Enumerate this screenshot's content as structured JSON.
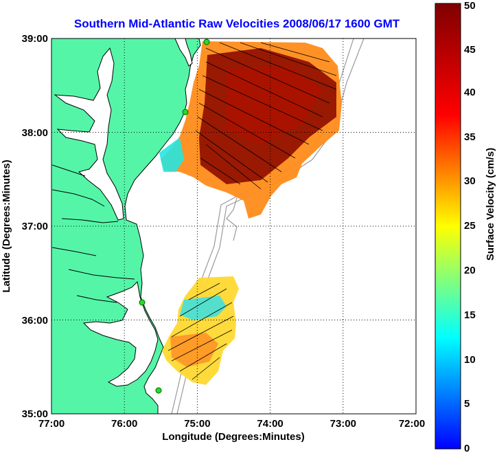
{
  "title": "Southern Mid-Atlantic Raw Velocities 2008/06/17 1600 GMT",
  "xlabel": "Longitude (Degrees:Minutes)",
  "ylabel": "Latitude (Degrees:Minutes)",
  "colorbar_label": "Surface Velocity (cm/s)",
  "x_ticks": [
    "77:00",
    "76:00",
    "75:00",
    "74:00",
    "73:00",
    "72:00"
  ],
  "y_ticks": [
    "39:00",
    "38:00",
    "37:00",
    "36:00",
    "35:00"
  ],
  "colorbar_ticks": [
    "0",
    "5",
    "10",
    "15",
    "20",
    "25",
    "30",
    "35",
    "40",
    "45",
    "50"
  ],
  "colors": {
    "land": "#55f5a8",
    "coast": "#000000",
    "isobath": "#999999",
    "title": "#0000ff",
    "station": "#22dd22"
  },
  "chart_data": {
    "type": "heatmap",
    "subtype": "surface-current-vector-map",
    "title": "Southern Mid-Atlantic Raw Velocities 2008/06/17 1600 GMT",
    "xlabel": "Longitude (Degrees:Minutes)",
    "ylabel": "Latitude (Degrees:Minutes)",
    "xlim": [
      -77,
      -72
    ],
    "ylim": [
      35,
      39
    ],
    "grid": true,
    "grid_style": "dotted",
    "colorbar": {
      "label": "Surface Velocity (cm/s)",
      "range": [
        0,
        50
      ],
      "ticks": [
        0,
        5,
        10,
        15,
        20,
        25,
        30,
        35,
        40,
        45,
        50
      ],
      "colormap": "jet"
    },
    "stations": [
      {
        "lon": -74.87,
        "lat": 38.97
      },
      {
        "lon": -75.08,
        "lat": 38.22
      },
      {
        "lon": -75.72,
        "lat": 36.18
      },
      {
        "lon": -75.46,
        "lat": 35.25
      }
    ]
  }
}
